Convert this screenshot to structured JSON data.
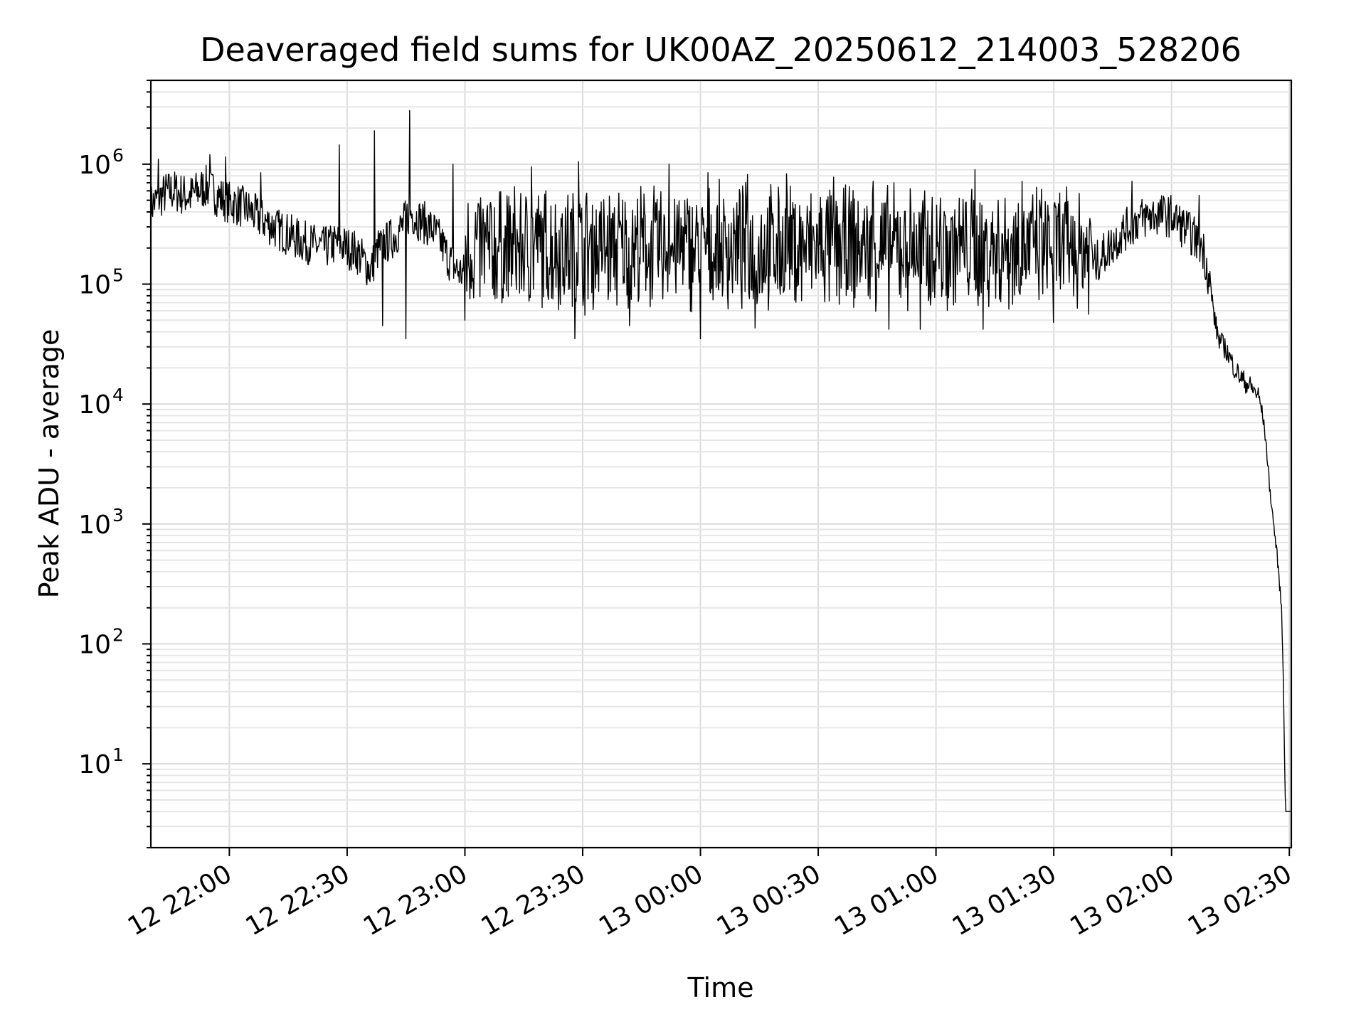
{
  "chart_data": {
    "type": "line",
    "title": "Deaveraged field sums for UK00AZ_20250612_214003_528206",
    "xlabel": "Time",
    "ylabel": "Peak ADU - average",
    "yscale": "log",
    "grid": true,
    "xlim": [
      "2025-06-12 21:40:00",
      "2025-06-13 02:30:30"
    ],
    "ylim": [
      2,
      5000000
    ],
    "x_ticks": [
      {
        "value": "2025-06-12 22:00",
        "label": "12 22:00"
      },
      {
        "value": "2025-06-12 22:30",
        "label": "12 22:30"
      },
      {
        "value": "2025-06-12 23:00",
        "label": "12 23:00"
      },
      {
        "value": "2025-06-12 23:30",
        "label": "12 23:30"
      },
      {
        "value": "2025-06-13 00:00",
        "label": "13 00:00"
      },
      {
        "value": "2025-06-13 00:30",
        "label": "13 00:30"
      },
      {
        "value": "2025-06-13 01:00",
        "label": "13 01:00"
      },
      {
        "value": "2025-06-13 01:30",
        "label": "13 01:30"
      },
      {
        "value": "2025-06-13 02:00",
        "label": "13 02:00"
      },
      {
        "value": "2025-06-13 02:30",
        "label": "13 02:30"
      }
    ],
    "y_ticks": [
      {
        "value": 10,
        "base": "10",
        "exp": "1"
      },
      {
        "value": 100,
        "base": "10",
        "exp": "2"
      },
      {
        "value": 1000,
        "base": "10",
        "exp": "3"
      },
      {
        "value": 10000,
        "base": "10",
        "exp": "4"
      },
      {
        "value": 100000,
        "base": "10",
        "exp": "5"
      },
      {
        "value": 1000000,
        "base": "10",
        "exp": "6"
      }
    ],
    "series": [
      {
        "color": "#000000",
        "points": [
          [
            "2025-06-12 21:40",
            450000
          ],
          [
            "2025-06-12 21:42",
            520000
          ],
          [
            "2025-06-12 21:44",
            580000
          ],
          [
            "2025-06-12 21:46",
            600000
          ],
          [
            "2025-06-12 21:48",
            560000
          ],
          [
            "2025-06-12 21:50",
            540000
          ],
          [
            "2025-06-12 21:52",
            600000
          ],
          [
            "2025-06-12 21:54",
            650000
          ],
          [
            "2025-06-12 21:56",
            580000
          ],
          [
            "2025-06-12 21:58",
            520000
          ],
          [
            "2025-06-12 22:00",
            480000
          ],
          [
            "2025-06-12 22:02",
            460000
          ],
          [
            "2025-06-12 22:04",
            430000
          ],
          [
            "2025-06-12 22:06",
            390000
          ],
          [
            "2025-06-12 22:08",
            350000
          ],
          [
            "2025-06-12 22:10",
            320000
          ],
          [
            "2025-06-12 22:12",
            290000
          ],
          [
            "2025-06-12 22:14",
            270000
          ],
          [
            "2025-06-12 22:16",
            250000
          ],
          [
            "2025-06-12 22:18",
            230000
          ],
          [
            "2025-06-12 22:20",
            220000
          ],
          [
            "2025-06-12 22:22",
            210000
          ],
          [
            "2025-06-12 22:24",
            200000
          ],
          [
            "2025-06-12 22:26",
            210000
          ],
          [
            "2025-06-12 22:28",
            220000
          ],
          [
            "2025-06-12 22:30",
            200000
          ],
          [
            "2025-06-12 22:32",
            190000
          ],
          [
            "2025-06-12 22:34",
            160000
          ],
          [
            "2025-06-12 22:36",
            130000
          ],
          [
            "2025-06-12 22:38",
            200000
          ],
          [
            "2025-06-12 22:40",
            220000
          ],
          [
            "2025-06-12 22:42",
            250000
          ],
          [
            "2025-06-12 22:44",
            300000
          ],
          [
            "2025-06-12 22:46",
            400000
          ],
          [
            "2025-06-12 22:48",
            350000
          ],
          [
            "2025-06-12 22:50",
            320000
          ],
          [
            "2025-06-12 22:52",
            280000
          ],
          [
            "2025-06-12 22:54",
            220000
          ],
          [
            "2025-06-12 22:56",
            160000
          ],
          [
            "2025-06-12 22:58",
            130000
          ],
          [
            "2025-06-12 23:00",
            120000
          ],
          [
            "2025-06-13 01:40",
            140000
          ],
          [
            "2025-06-13 01:44",
            200000
          ],
          [
            "2025-06-13 01:48",
            280000
          ],
          [
            "2025-06-13 01:52",
            350000
          ],
          [
            "2025-06-13 01:56",
            380000
          ],
          [
            "2025-06-13 02:00",
            370000
          ],
          [
            "2025-06-13 02:02",
            320000
          ],
          [
            "2025-06-13 02:04",
            280000
          ],
          [
            "2025-06-13 02:06",
            240000
          ],
          [
            "2025-06-13 02:08",
            200000
          ],
          [
            "2025-06-13 02:09",
            140000
          ],
          [
            "2025-06-13 02:10",
            90000
          ],
          [
            "2025-06-13 02:11",
            50000
          ],
          [
            "2025-06-13 02:12",
            35000
          ],
          [
            "2025-06-13 02:14",
            28000
          ],
          [
            "2025-06-13 02:16",
            20000
          ],
          [
            "2025-06-13 02:18",
            16000
          ],
          [
            "2025-06-13 02:20",
            14000
          ],
          [
            "2025-06-13 02:22",
            12000
          ],
          [
            "2025-06-13 02:23",
            9000
          ],
          [
            "2025-06-13 02:24",
            5000
          ],
          [
            "2025-06-13 02:25",
            2000
          ],
          [
            "2025-06-13 02:26",
            1000
          ],
          [
            "2025-06-13 02:27",
            500
          ],
          [
            "2025-06-13 02:28",
            200
          ],
          [
            "2025-06-13 02:28:30",
            50
          ],
          [
            "2025-06-13 02:29",
            4
          ],
          [
            "2025-06-13 02:30:30",
            4
          ]
        ]
      }
    ],
    "peaks": [
      [
        "2025-06-12 21:42",
        1100000
      ],
      [
        "2025-06-12 21:55",
        1200000
      ],
      [
        "2025-06-12 21:59",
        1150000
      ],
      [
        "2025-06-12 22:08",
        850000
      ],
      [
        "2025-06-12 22:28",
        1450000
      ],
      [
        "2025-06-12 22:37",
        1900000
      ],
      [
        "2025-06-12 22:46",
        2800000
      ],
      [
        "2025-06-12 22:57",
        1000000
      ],
      [
        "2025-06-12 23:17",
        950000
      ],
      [
        "2025-06-12 23:29",
        1050000
      ],
      [
        "2025-06-12 23:52",
        1000000
      ],
      [
        "2025-06-13 00:02",
        850000
      ],
      [
        "2025-06-13 00:12",
        820000
      ],
      [
        "2025-06-13 00:22",
        830000
      ],
      [
        "2025-06-13 00:34",
        780000
      ],
      [
        "2025-06-13 00:44",
        720000
      ],
      [
        "2025-06-13 01:10",
        900000
      ],
      [
        "2025-06-13 01:22",
        720000
      ],
      [
        "2025-06-13 01:50",
        720000
      ],
      [
        "2025-06-13 02:07",
        550000
      ]
    ],
    "dips": [
      [
        "2025-06-12 22:39",
        45000
      ],
      [
        "2025-06-12 22:45",
        35000
      ],
      [
        "2025-06-12 23:00",
        50000
      ],
      [
        "2025-06-12 23:28",
        35000
      ],
      [
        "2025-06-12 23:42",
        45000
      ],
      [
        "2025-06-13 00:00",
        35000
      ],
      [
        "2025-06-13 00:14",
        43000
      ],
      [
        "2025-06-13 00:48",
        42000
      ],
      [
        "2025-06-13 00:56",
        42000
      ],
      [
        "2025-06-13 01:12",
        42000
      ],
      [
        "2025-06-13 01:30",
        48000
      ]
    ]
  }
}
